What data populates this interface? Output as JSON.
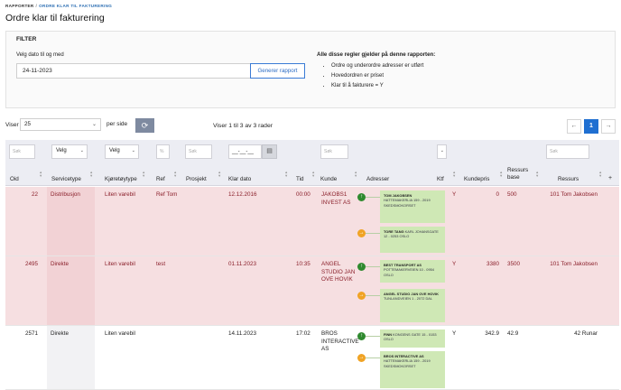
{
  "breadcrumb": {
    "root": "RAPPORTER",
    "sep": "/",
    "current": "ORDRE KLAR TIL FAKTURERING"
  },
  "page": {
    "title": "Ordre klar til fakturering"
  },
  "filter": {
    "heading": "FILTER",
    "date_label": "Velg dato til og med",
    "date_value": "24-11-2023",
    "generate_label": "Generer rapport",
    "rules_title": "Alle disse regler gjelder på denne rapporten:",
    "rules": [
      "Ordre og underordre adresser er utført",
      "Hovedordren er priset",
      "Klar til å fakturere = Y"
    ]
  },
  "pager": {
    "viser_label": "Viser",
    "page_size": "25",
    "per_side_label": "per side",
    "count_text": "Viser 1 til 3 av 3 rader",
    "prev": "←",
    "current_page": "1",
    "next": "→",
    "refresh_icon": "refresh-icon"
  },
  "grid_filters": {
    "search_placeholder": "Søk",
    "select_placeholder": "Velg",
    "percent_placeholder": "%",
    "date_placeholder": "__-__-__",
    "calendar_icon": "calendar-icon"
  },
  "columns": [
    "Oid",
    "Servicetype",
    "Kjøretøytype",
    "Ref",
    "Prosjekt",
    "Klar dato",
    "Tid",
    "Kunde",
    "Adresser",
    "Ktf",
    "Kundepris",
    "Ressurs base",
    "Ressurs",
    "+"
  ],
  "rows": [
    {
      "style": "pink",
      "oid": "22",
      "servicetype": "Distribusjon",
      "kjoretoytype": "Liten varebil",
      "ref": "Ref Tom",
      "prosjekt": "",
      "klar_dato": "12.12.2016",
      "tid": "00:00",
      "kunde": "JAKOBS1 INVEST AS",
      "ktf": "Y",
      "kundepris": "0",
      "ressurs_base": "500",
      "ressurs": "101 Tom Jakobsen",
      "addresses": [
        {
          "type": "pickup",
          "name": "TOM JAKOBSEN",
          "lines": [
            "HATTEMAKERLIA 159",
            "- 2019",
            "SKEDSMOKORSET"
          ]
        },
        {
          "type": "delivery",
          "name": "TORE TANG",
          "lines": [
            "KARL",
            "JOHANSGATE 12",
            "- 0253 OSLO"
          ]
        }
      ]
    },
    {
      "style": "pink",
      "oid": "2495",
      "servicetype": "Direkte",
      "kjoretoytype": "Liten varebil",
      "ref": "test",
      "prosjekt": "",
      "klar_dato": "01.11.2023",
      "tid": "10:35",
      "kunde": "ANGEL STUDIO JAN OVE HOVIK",
      "ktf": "Y",
      "kundepris": "3380",
      "ressurs_base": "3500",
      "ressurs": "101 Tom Jakobsen",
      "addresses": [
        {
          "type": "pickup",
          "name": "BEST TRANSPORT AS",
          "lines": [
            "POTTEMAKERVEIEN",
            "10 - 0954 OSLO"
          ]
        },
        {
          "type": "delivery",
          "name": "ANGEL STUDIO JAN OVE HOVIK",
          "lines": [
            "TUNLANDVEIEN 1 -",
            "2072 DAL"
          ]
        }
      ]
    },
    {
      "style": "white",
      "oid": "2571",
      "servicetype": "Direkte",
      "kjoretoytype": "Liten varebil",
      "ref": "",
      "prosjekt": "",
      "klar_dato": "14.11.2023",
      "tid": "17:02",
      "kunde": "BROS INTERACTIVE AS",
      "ktf": "Y",
      "kundepris": "342.9",
      "ressurs_base": "42.9",
      "ressurs": "42 Runar",
      "addresses": [
        {
          "type": "pickup",
          "name": "FINN",
          "lines": [
            "KONGENS GATE",
            "15 - 0153 OSLO"
          ]
        },
        {
          "type": "delivery",
          "name": "BROS INTERACTIVE AS",
          "lines": [
            "HATTEMAKERLIA",
            "159 - 2019",
            "SKEDSMOKORSET"
          ]
        }
      ]
    }
  ]
}
